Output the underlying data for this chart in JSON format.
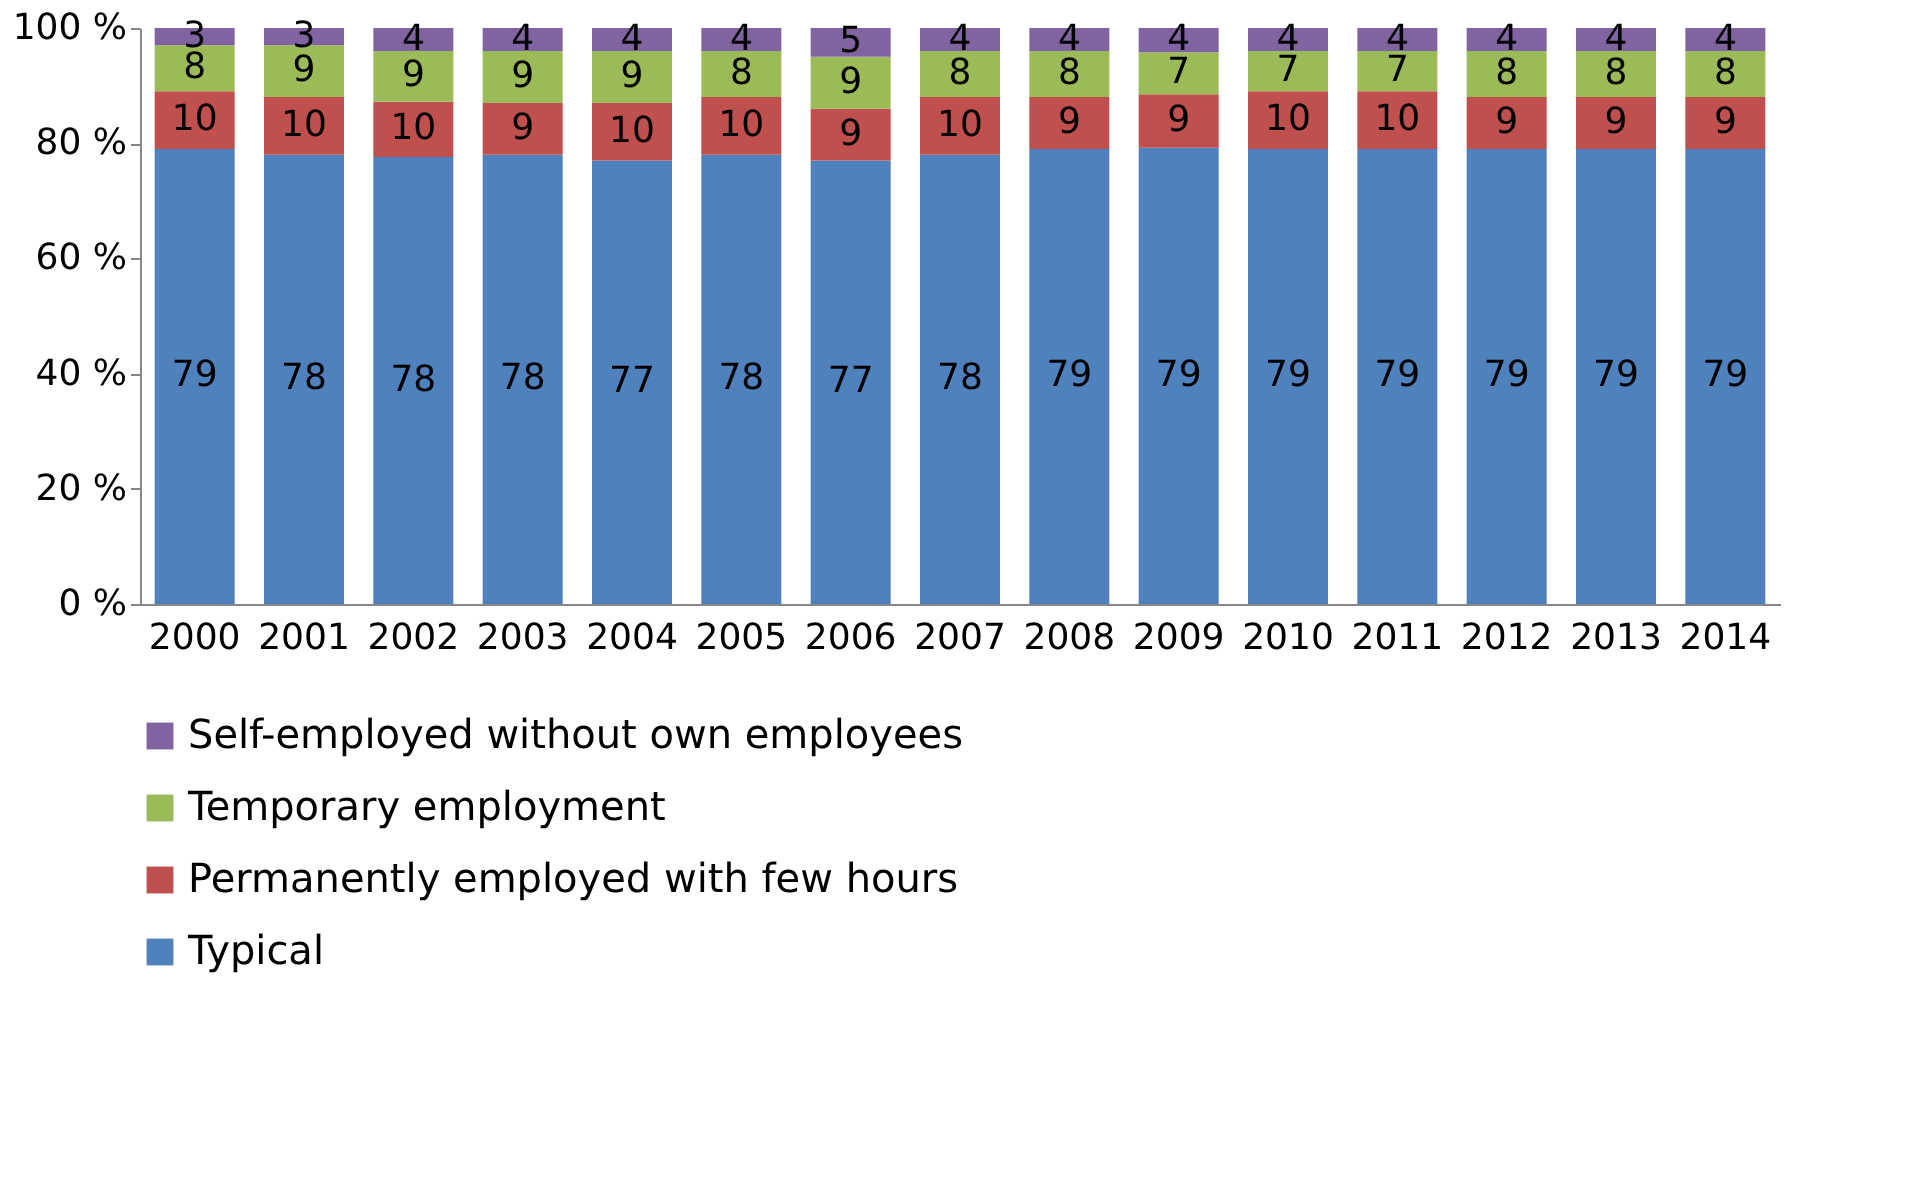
{
  "chart_data": {
    "type": "bar",
    "stacked": true,
    "categories": [
      "2000",
      "2001",
      "2002",
      "2003",
      "2004",
      "2005",
      "2006",
      "2007",
      "2008",
      "2009",
      "2010",
      "2011",
      "2012",
      "2013",
      "2014"
    ],
    "series": [
      {
        "name": "Typical",
        "color": "#4f81bd",
        "values": [
          79,
          78,
          77.6,
          78,
          77,
          78,
          77,
          78,
          79,
          79.2,
          79,
          79,
          79,
          79,
          79
        ],
        "value_labels": [
          "79",
          "78",
          "78",
          "78",
          "77",
          "78",
          "77",
          "78",
          "79",
          "79",
          "79",
          "79",
          "79",
          "79",
          "79"
        ]
      },
      {
        "name": "Permanently employed with few hours",
        "color": "#c0504d",
        "values": [
          10,
          10,
          9.6,
          9,
          10,
          10,
          9,
          10,
          9,
          9.3,
          10,
          10,
          9,
          9,
          9
        ],
        "value_labels": [
          "10",
          "10",
          "10",
          "9",
          "10",
          "10",
          "9",
          "10",
          "9",
          "9",
          "10",
          "10",
          "9",
          "9",
          "9"
        ]
      },
      {
        "name": "Temporary employment",
        "color": "#9bbb59",
        "values": [
          8,
          9,
          8.8,
          9,
          9,
          8,
          9,
          8,
          8,
          7.3,
          7,
          7,
          8,
          8,
          8
        ],
        "value_labels": [
          "8",
          "9",
          "9",
          "9",
          "9",
          "8",
          "9",
          "8",
          "8",
          "7",
          "7",
          "7",
          "8",
          "8",
          "8"
        ]
      },
      {
        "name": "Self-employed without own employees",
        "color": "#8064a2",
        "values": [
          3,
          3,
          4,
          4,
          4,
          4,
          5,
          4,
          4,
          4.2,
          4,
          4,
          4,
          4,
          4
        ],
        "value_labels": [
          "3",
          "3",
          "4",
          "4",
          "4",
          "4",
          "5",
          "4",
          "4",
          "4",
          "4",
          "4",
          "4",
          "4",
          "4"
        ]
      }
    ],
    "ylim": [
      0,
      100
    ],
    "yticks": [
      {
        "value": 0,
        "label": "0 %"
      },
      {
        "value": 20,
        "label": "20 %"
      },
      {
        "value": 40,
        "label": "40 %"
      },
      {
        "value": 60,
        "label": "60 %"
      },
      {
        "value": 80,
        "label": "80 %"
      },
      {
        "value": 100,
        "label": "100 %"
      }
    ],
    "grid": false,
    "legend": "bottom"
  }
}
